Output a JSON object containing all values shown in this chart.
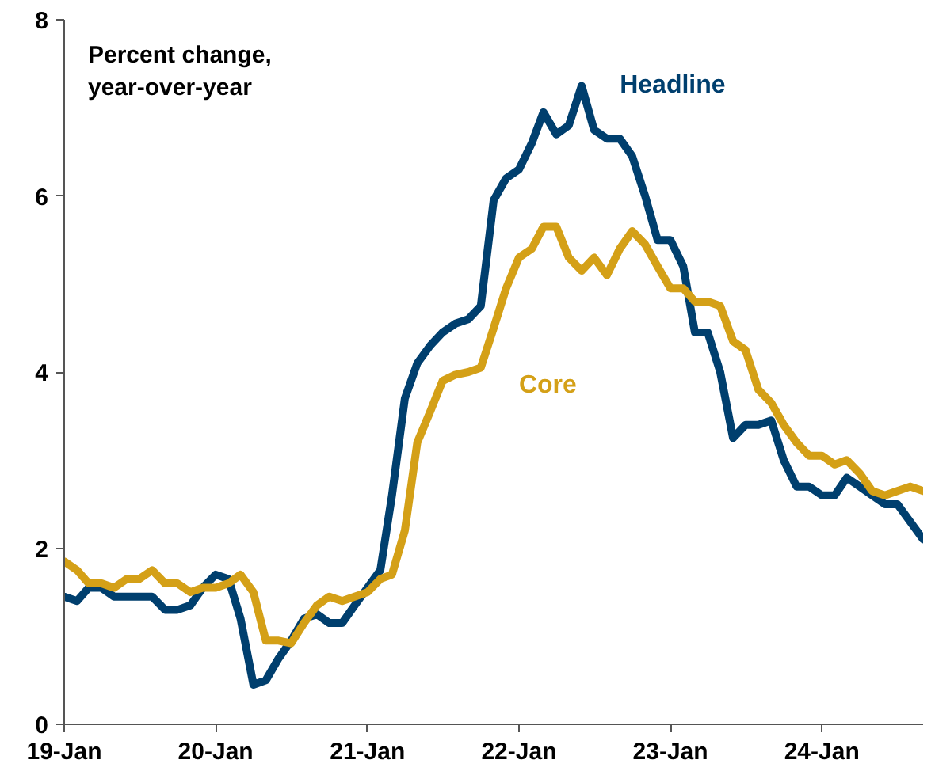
{
  "chart_data": {
    "type": "line",
    "ylabel": "Percent change,\nyear-over-year",
    "x": [
      "2019-01",
      "2019-02",
      "2019-03",
      "2019-04",
      "2019-05",
      "2019-06",
      "2019-07",
      "2019-08",
      "2019-09",
      "2019-10",
      "2019-11",
      "2019-12",
      "2020-01",
      "2020-02",
      "2020-03",
      "2020-04",
      "2020-05",
      "2020-06",
      "2020-07",
      "2020-08",
      "2020-09",
      "2020-10",
      "2020-11",
      "2020-12",
      "2021-01",
      "2021-02",
      "2021-03",
      "2021-04",
      "2021-05",
      "2021-06",
      "2021-07",
      "2021-08",
      "2021-09",
      "2021-10",
      "2021-11",
      "2021-12",
      "2022-01",
      "2022-02",
      "2022-03",
      "2022-04",
      "2022-05",
      "2022-06",
      "2022-07",
      "2022-08",
      "2022-09",
      "2022-10",
      "2022-11",
      "2022-12",
      "2023-01",
      "2023-02",
      "2023-03",
      "2023-04",
      "2023-05",
      "2023-06",
      "2023-07",
      "2023-08",
      "2023-09",
      "2023-10",
      "2023-11",
      "2023-12",
      "2024-01",
      "2024-02",
      "2024-03",
      "2024-04",
      "2024-05",
      "2024-06",
      "2024-07",
      "2024-08",
      "2024-09"
    ],
    "series": [
      {
        "name": "Headline",
        "color": "#003f6e",
        "values": [
          1.45,
          1.4,
          1.55,
          1.55,
          1.45,
          1.45,
          1.45,
          1.45,
          1.3,
          1.3,
          1.35,
          1.55,
          1.7,
          1.65,
          1.2,
          0.45,
          0.5,
          0.75,
          0.95,
          1.2,
          1.25,
          1.15,
          1.15,
          1.35,
          1.55,
          1.75,
          2.6,
          3.7,
          4.1,
          4.3,
          4.45,
          4.55,
          4.6,
          4.75,
          5.95,
          6.2,
          6.3,
          6.6,
          6.95,
          6.7,
          6.8,
          7.25,
          6.75,
          6.65,
          6.65,
          6.45,
          6.0,
          5.5,
          5.5,
          5.2,
          4.45,
          4.45,
          4.0,
          3.25,
          3.4,
          3.4,
          3.45,
          3.0,
          2.7,
          2.7,
          2.6,
          2.6,
          2.8,
          2.7,
          2.6,
          2.5,
          2.5,
          2.3,
          2.1
        ]
      },
      {
        "name": "Core",
        "color": "#d4a017",
        "values": [
          1.85,
          1.75,
          1.6,
          1.6,
          1.55,
          1.65,
          1.65,
          1.75,
          1.6,
          1.6,
          1.5,
          1.55,
          1.55,
          1.6,
          1.7,
          1.5,
          0.95,
          0.95,
          0.92,
          1.15,
          1.35,
          1.45,
          1.4,
          1.45,
          1.5,
          1.65,
          1.7,
          2.2,
          3.2,
          3.55,
          3.9,
          3.97,
          4.0,
          4.05,
          4.5,
          4.95,
          5.3,
          5.4,
          5.65,
          5.65,
          5.3,
          5.15,
          5.3,
          5.1,
          5.4,
          5.6,
          5.45,
          5.2,
          4.95,
          4.95,
          4.8,
          4.8,
          4.75,
          4.35,
          4.25,
          3.8,
          3.65,
          3.4,
          3.2,
          3.05,
          3.05,
          2.95,
          3.0,
          2.85,
          2.65,
          2.6,
          2.65,
          2.7,
          2.65
        ]
      }
    ],
    "xlim": [
      "2019-01",
      "2024-09"
    ],
    "xticks": [
      {
        "value": "2019-01",
        "label": "19-Jan"
      },
      {
        "value": "2020-01",
        "label": "20-Jan"
      },
      {
        "value": "2021-01",
        "label": "21-Jan"
      },
      {
        "value": "2022-01",
        "label": "22-Jan"
      },
      {
        "value": "2023-01",
        "label": "23-Jan"
      },
      {
        "value": "2024-01",
        "label": "24-Jan"
      }
    ],
    "ylim": [
      0,
      8
    ],
    "yticks": [
      0,
      2,
      4,
      6,
      8
    ],
    "grid": false,
    "legend": false,
    "line_style": "solid",
    "marker": "none"
  }
}
